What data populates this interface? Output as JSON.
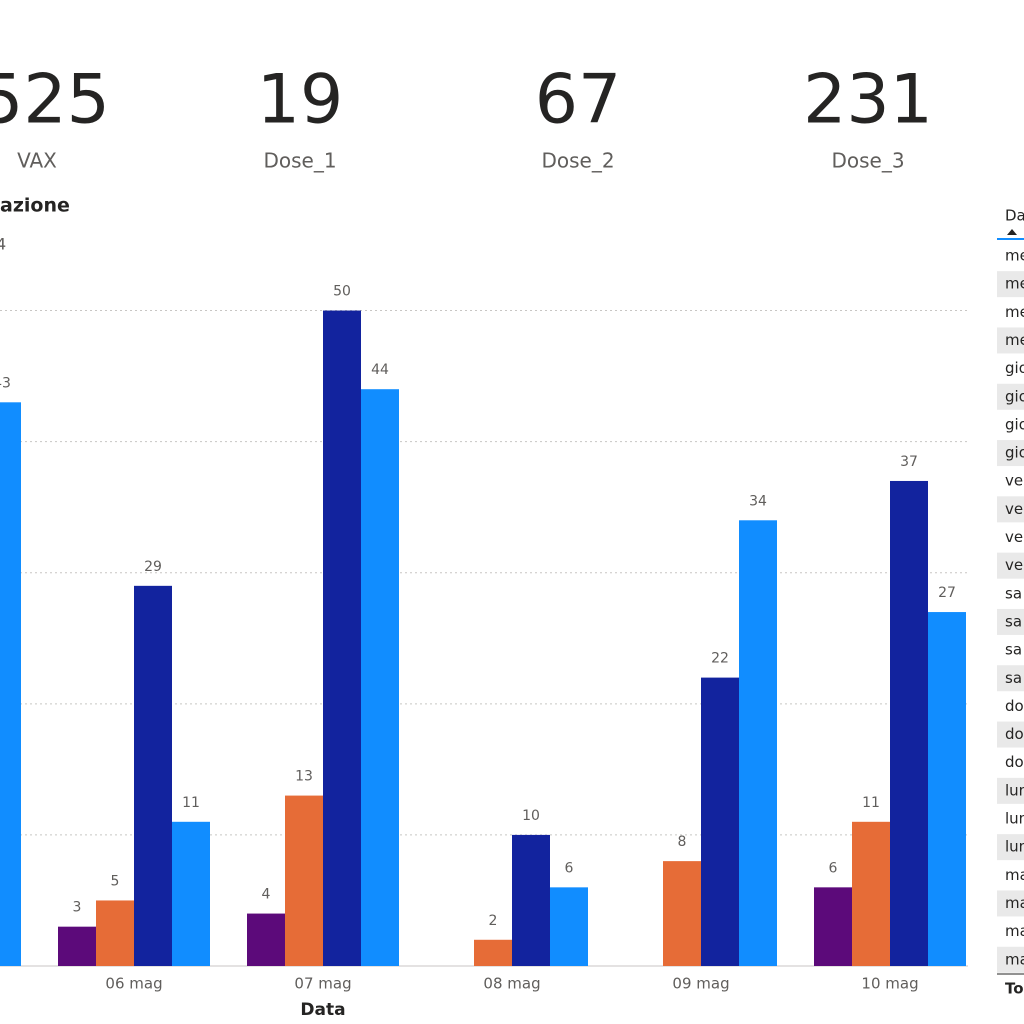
{
  "cards": [
    {
      "value": "525",
      "label": "VAX"
    },
    {
      "value": "19",
      "label": "Dose_1"
    },
    {
      "value": "67",
      "label": "Dose_2"
    },
    {
      "value": "231",
      "label": "Dose_3"
    }
  ],
  "chart_data": {
    "type": "bar",
    "title": "azione",
    "legend_text": "4",
    "xlabel": "Data",
    "categories": [
      null,
      "06 mag",
      "07 mag",
      "08 mag",
      "09 mag",
      "10 mag"
    ],
    "series": [
      {
        "color": "#5c0a7a",
        "values": [
          null,
          3,
          4,
          null,
          null,
          6
        ]
      },
      {
        "color": "#e66c37",
        "values": [
          null,
          5,
          13,
          2,
          8,
          11
        ]
      },
      {
        "color": "#12239e",
        "values": [
          null,
          29,
          50,
          10,
          22,
          37
        ]
      },
      {
        "color": "#118dff",
        "values": [
          43,
          11,
          44,
          6,
          34,
          27
        ]
      }
    ],
    "ylim": [
      0,
      55
    ],
    "yticks": [
      0,
      10,
      20,
      30,
      40,
      50
    ],
    "grid": true
  },
  "table": {
    "header": "Da",
    "rows": [
      "me",
      "me",
      "me",
      "me",
      "gio",
      "gio",
      "gio",
      "gio",
      "ve",
      "ve",
      "ve",
      "ve",
      "sa",
      "sa",
      "sa",
      "sa",
      "do",
      "do",
      "do",
      "lun",
      "lun",
      "lun",
      "ma",
      "ma",
      "ma",
      "ma"
    ],
    "total": "To"
  }
}
